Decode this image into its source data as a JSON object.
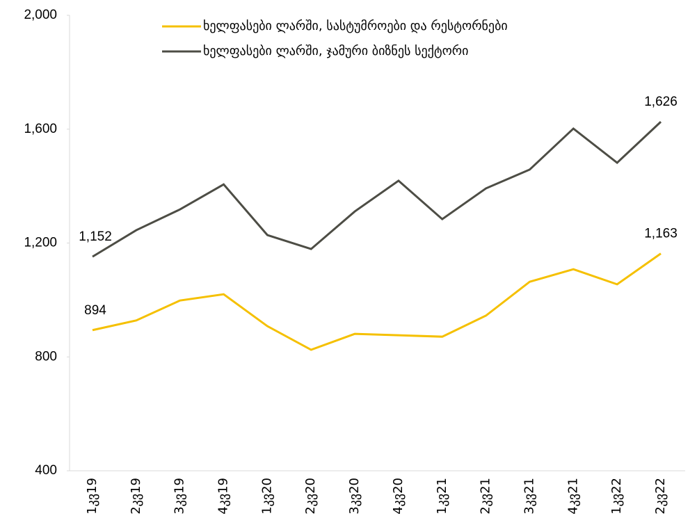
{
  "chart_data": {
    "type": "line",
    "categories": [
      "1კვ19",
      "2კვ19",
      "3კვ19",
      "4კვ19",
      "1კვ20",
      "2კვ20",
      "3კვ20",
      "4კვ20",
      "1კვ21",
      "2კვ21",
      "3კვ21",
      "4კვ21",
      "1კვ22",
      "2კვ22"
    ],
    "series": [
      {
        "name": "ხელფასები ლარში, სასტუმროები და რესტორნები",
        "color": "#f5c000",
        "values": [
          894,
          928,
          998,
          1020,
          908,
          825,
          881,
          876,
          871,
          945,
          1064,
          1108,
          1055,
          1163
        ],
        "value_labels": [
          "894",
          null,
          null,
          null,
          null,
          null,
          null,
          null,
          null,
          null,
          null,
          null,
          null,
          "1,163"
        ]
      },
      {
        "name": "ხელფასები ლარში, ჯამური ბიზნეს სექტორი",
        "color": "#4d4d45",
        "values": [
          1152,
          1245,
          1318,
          1406,
          1228,
          1179,
          1311,
          1419,
          1284,
          1392,
          1458,
          1602,
          1482,
          1626
        ],
        "value_labels": [
          "1,152",
          null,
          null,
          null,
          null,
          null,
          null,
          null,
          null,
          null,
          null,
          null,
          null,
          "1,626"
        ]
      }
    ],
    "ylim": [
      400,
      2000
    ],
    "yticks": [
      400,
      {
        "value": 800,
        "label": "800"
      },
      {
        "value": 1200,
        "label": "1,200"
      },
      {
        "value": 1600,
        "label": "1,600"
      },
      {
        "value": 2000,
        "label": "2,000"
      }
    ]
  }
}
